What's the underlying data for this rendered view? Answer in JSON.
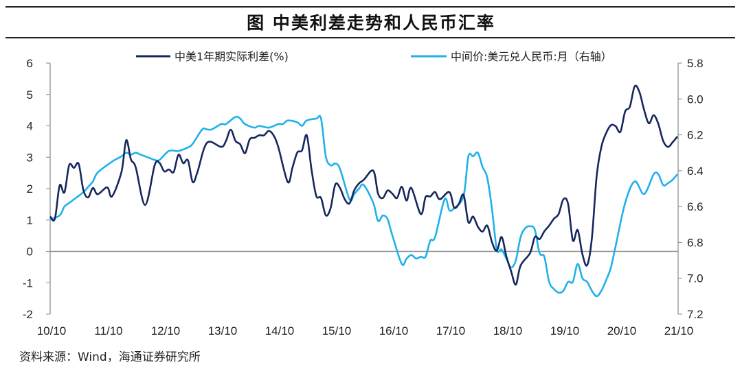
{
  "title": "图  中美利差走势和人民币汇率",
  "source": "资料来源：Wind，海通证券研究所",
  "chart_data": {
    "type": "line",
    "title": "图  中美利差走势和人民币汇率",
    "legend_position": "top",
    "grid": false,
    "x_tick_labels": [
      "10/10",
      "11/10",
      "12/10",
      "13/10",
      "14/10",
      "15/10",
      "16/10",
      "17/10",
      "18/10",
      "19/10",
      "20/10",
      "21/10"
    ],
    "x_range": [
      "2010-10",
      "2021-10"
    ],
    "y_left": {
      "ylim": [
        -2,
        6
      ],
      "ticks": [
        "6",
        "5",
        "4",
        "3",
        "2",
        "1",
        "0",
        "-1",
        "-2"
      ]
    },
    "y_right": {
      "ylim": [
        5.8,
        7.2
      ],
      "inverted": true,
      "ticks": [
        "5.8",
        "6.0",
        "6.2",
        "6.4",
        "6.6",
        "6.8",
        "7.0",
        "7.2"
      ]
    },
    "series": [
      {
        "name": "中美1年期实际利差(%)",
        "axis": "left",
        "color": "#16275e",
        "points": [
          [
            "2010-10",
            1.11
          ],
          [
            "2010-11",
            1.04
          ],
          [
            "2010-12",
            2.1
          ],
          [
            "2011-01",
            1.88
          ],
          [
            "2011-02",
            2.75
          ],
          [
            "2011-03",
            2.66
          ],
          [
            "2011-04",
            2.79
          ],
          [
            "2011-05",
            1.95
          ],
          [
            "2011-06",
            1.72
          ],
          [
            "2011-07",
            2.02
          ],
          [
            "2011-08",
            1.82
          ],
          [
            "2011-10",
            2.04
          ],
          [
            "2011-11",
            1.75
          ],
          [
            "2012-01",
            2.53
          ],
          [
            "2012-02",
            3.54
          ],
          [
            "2012-03",
            2.93
          ],
          [
            "2012-04",
            2.68
          ],
          [
            "2012-06",
            1.48
          ],
          [
            "2012-08",
            2.75
          ],
          [
            "2012-09",
            2.82
          ],
          [
            "2012-10",
            2.55
          ],
          [
            "2012-11",
            2.61
          ],
          [
            "2012-12",
            2.53
          ],
          [
            "2013-01",
            3.08
          ],
          [
            "2013-02",
            2.81
          ],
          [
            "2013-03",
            2.9
          ],
          [
            "2013-04",
            2.21
          ],
          [
            "2013-05",
            2.53
          ],
          [
            "2013-07",
            3.46
          ],
          [
            "2013-10",
            3.33
          ],
          [
            "2013-11",
            3.52
          ],
          [
            "2013-12",
            3.88
          ],
          [
            "2014-01",
            3.52
          ],
          [
            "2014-02",
            3.41
          ],
          [
            "2014-03",
            3.13
          ],
          [
            "2014-04",
            3.57
          ],
          [
            "2014-05",
            3.62
          ],
          [
            "2014-06",
            3.7
          ],
          [
            "2014-07",
            3.7
          ],
          [
            "2014-08",
            3.84
          ],
          [
            "2014-09",
            3.7
          ],
          [
            "2014-10",
            3.33
          ],
          [
            "2014-12",
            2.21
          ],
          [
            "2015-01",
            2.68
          ],
          [
            "2015-02",
            3.15
          ],
          [
            "2015-03",
            3.22
          ],
          [
            "2015-04",
            3.7
          ],
          [
            "2015-05",
            2.61
          ],
          [
            "2015-06",
            1.77
          ],
          [
            "2015-07",
            1.7
          ],
          [
            "2015-08",
            1.15
          ],
          [
            "2015-09",
            1.37
          ],
          [
            "2015-10",
            2.13
          ],
          [
            "2015-11",
            2.02
          ],
          [
            "2015-12",
            1.66
          ],
          [
            "2016-01",
            1.53
          ],
          [
            "2016-02",
            1.95
          ],
          [
            "2016-03",
            2.17
          ],
          [
            "2016-04",
            2.28
          ],
          [
            "2016-06",
            2.57
          ],
          [
            "2016-07",
            1.84
          ],
          [
            "2016-08",
            1.7
          ],
          [
            "2016-09",
            1.94
          ],
          [
            "2016-10",
            1.84
          ],
          [
            "2016-11",
            1.7
          ],
          [
            "2016-12",
            2.06
          ],
          [
            "2017-01",
            1.62
          ],
          [
            "2017-02",
            2.02
          ],
          [
            "2017-04",
            1.19
          ],
          [
            "2017-05",
            1.73
          ],
          [
            "2017-06",
            1.75
          ],
          [
            "2017-07",
            1.89
          ],
          [
            "2017-08",
            1.66
          ],
          [
            "2017-10",
            1.89
          ],
          [
            "2017-11",
            1.4
          ],
          [
            "2017-12",
            1.51
          ],
          [
            "2018-01",
            1.8
          ],
          [
            "2018-02",
            0.93
          ],
          [
            "2018-03",
            1.11
          ],
          [
            "2018-04",
            0.79
          ],
          [
            "2018-05",
            0.63
          ],
          [
            "2018-06",
            0.82
          ],
          [
            "2018-07",
            0.28
          ],
          [
            "2018-08",
            0.02
          ],
          [
            "2018-09",
            0.46
          ],
          [
            "2018-10",
            -0.16
          ],
          [
            "2018-11",
            -0.63
          ],
          [
            "2018-12",
            -1.06
          ],
          [
            "2019-01",
            -0.45
          ],
          [
            "2019-03",
            -0.05
          ],
          [
            "2019-04",
            0.46
          ],
          [
            "2019-05",
            0.39
          ],
          [
            "2019-06",
            0.64
          ],
          [
            "2019-07",
            0.82
          ],
          [
            "2019-08",
            1.04
          ],
          [
            "2019-09",
            1.19
          ],
          [
            "2019-10",
            1.66
          ],
          [
            "2019-11",
            1.51
          ],
          [
            "2019-12",
            0.35
          ],
          [
            "2020-01",
            0.68
          ],
          [
            "2020-02",
            -0.09
          ],
          [
            "2020-03",
            -0.44
          ],
          [
            "2020-04",
            0.42
          ],
          [
            "2020-05",
            2.39
          ],
          [
            "2020-06",
            3.33
          ],
          [
            "2020-07",
            3.77
          ],
          [
            "2020-08",
            4.02
          ],
          [
            "2020-09",
            3.99
          ],
          [
            "2020-10",
            3.81
          ],
          [
            "2020-11",
            4.46
          ],
          [
            "2020-12",
            4.61
          ],
          [
            "2021-01",
            5.26
          ],
          [
            "2021-02",
            5.08
          ],
          [
            "2021-03",
            4.5
          ],
          [
            "2021-04",
            4.08
          ],
          [
            "2021-05",
            4.34
          ],
          [
            "2021-06",
            4.06
          ],
          [
            "2021-07",
            3.52
          ],
          [
            "2021-08",
            3.33
          ],
          [
            "2021-09",
            3.48
          ],
          [
            "2021-10",
            3.66
          ]
        ]
      },
      {
        "name": "中间价:美元兑人民币:月（右轴）",
        "axis": "right",
        "color": "#1fb1ea",
        "points": [
          [
            "2010-10",
            6.67
          ],
          [
            "2010-12",
            6.65
          ],
          [
            "2011-01",
            6.6
          ],
          [
            "2011-02",
            6.58
          ],
          [
            "2011-03",
            6.56
          ],
          [
            "2011-05",
            6.52
          ],
          [
            "2011-06",
            6.49
          ],
          [
            "2011-07",
            6.46
          ],
          [
            "2011-08",
            6.41
          ],
          [
            "2011-11",
            6.35
          ],
          [
            "2012-01",
            6.32
          ],
          [
            "2012-02",
            6.3
          ],
          [
            "2012-03",
            6.31
          ],
          [
            "2012-04",
            6.3
          ],
          [
            "2012-05",
            6.31
          ],
          [
            "2012-06",
            6.32
          ],
          [
            "2012-07",
            6.33
          ],
          [
            "2012-08",
            6.34
          ],
          [
            "2012-09",
            6.34
          ],
          [
            "2012-11",
            6.29
          ],
          [
            "2013-01",
            6.29
          ],
          [
            "2013-03",
            6.27
          ],
          [
            "2013-04",
            6.25
          ],
          [
            "2013-06",
            6.17
          ],
          [
            "2013-07",
            6.17
          ],
          [
            "2013-08",
            6.17
          ],
          [
            "2013-10",
            6.14
          ],
          [
            "2013-11",
            6.14
          ],
          [
            "2014-01",
            6.1
          ],
          [
            "2014-02",
            6.11
          ],
          [
            "2014-03",
            6.14
          ],
          [
            "2014-05",
            6.16
          ],
          [
            "2014-06",
            6.15
          ],
          [
            "2014-08",
            6.16
          ],
          [
            "2014-10",
            6.14
          ],
          [
            "2014-11",
            6.14
          ],
          [
            "2014-12",
            6.12
          ],
          [
            "2015-02",
            6.13
          ],
          [
            "2015-03",
            6.15
          ],
          [
            "2015-04",
            6.12
          ],
          [
            "2015-06",
            6.11
          ],
          [
            "2015-07",
            6.11
          ],
          [
            "2015-08",
            6.32
          ],
          [
            "2015-09",
            6.37
          ],
          [
            "2015-10",
            6.36
          ],
          [
            "2015-11",
            6.39
          ],
          [
            "2016-01",
            6.56
          ],
          [
            "2016-02",
            6.53
          ],
          [
            "2016-03",
            6.5
          ],
          [
            "2016-04",
            6.48
          ],
          [
            "2016-06",
            6.58
          ],
          [
            "2016-07",
            6.68
          ],
          [
            "2016-08",
            6.65
          ],
          [
            "2016-09",
            6.67
          ],
          [
            "2016-10",
            6.76
          ],
          [
            "2016-12",
            6.92
          ],
          [
            "2017-01",
            6.89
          ],
          [
            "2017-02",
            6.87
          ],
          [
            "2017-03",
            6.89
          ],
          [
            "2017-04",
            6.88
          ],
          [
            "2017-05",
            6.88
          ],
          [
            "2017-06",
            6.79
          ],
          [
            "2017-07",
            6.77
          ],
          [
            "2017-09",
            6.56
          ],
          [
            "2017-10",
            6.62
          ],
          [
            "2017-11",
            6.61
          ],
          [
            "2018-01",
            6.54
          ],
          [
            "2018-02",
            6.32
          ],
          [
            "2018-03",
            6.32
          ],
          [
            "2018-04",
            6.3
          ],
          [
            "2018-05",
            6.38
          ],
          [
            "2018-06",
            6.44
          ],
          [
            "2018-07",
            6.62
          ],
          [
            "2018-08",
            6.84
          ],
          [
            "2018-09",
            6.84
          ],
          [
            "2018-10",
            6.89
          ],
          [
            "2018-11",
            6.94
          ],
          [
            "2018-12",
            6.9
          ],
          [
            "2019-01",
            6.77
          ],
          [
            "2019-02",
            6.72
          ],
          [
            "2019-03",
            6.71
          ],
          [
            "2019-04",
            6.73
          ],
          [
            "2019-05",
            6.86
          ],
          [
            "2019-06",
            6.88
          ],
          [
            "2019-07",
            7.02
          ],
          [
            "2019-08",
            7.06
          ],
          [
            "2019-09",
            7.08
          ],
          [
            "2019-10",
            7.07
          ],
          [
            "2019-11",
            7.02
          ],
          [
            "2019-12",
            7.02
          ],
          [
            "2020-01",
            6.92
          ],
          [
            "2020-02",
            7.0
          ],
          [
            "2020-03",
            7.02
          ],
          [
            "2020-04",
            7.07
          ],
          [
            "2020-05",
            7.1
          ],
          [
            "2020-06",
            7.07
          ],
          [
            "2020-07",
            7.01
          ],
          [
            "2020-08",
            6.94
          ],
          [
            "2020-09",
            6.82
          ],
          [
            "2020-11",
            6.58
          ],
          [
            "2021-01",
            6.46
          ],
          [
            "2021-03",
            6.53
          ],
          [
            "2021-05",
            6.42
          ],
          [
            "2021-06",
            6.42
          ],
          [
            "2021-07",
            6.48
          ],
          [
            "2021-08",
            6.47
          ],
          [
            "2021-09",
            6.45
          ],
          [
            "2021-10",
            6.42
          ]
        ]
      }
    ]
  }
}
